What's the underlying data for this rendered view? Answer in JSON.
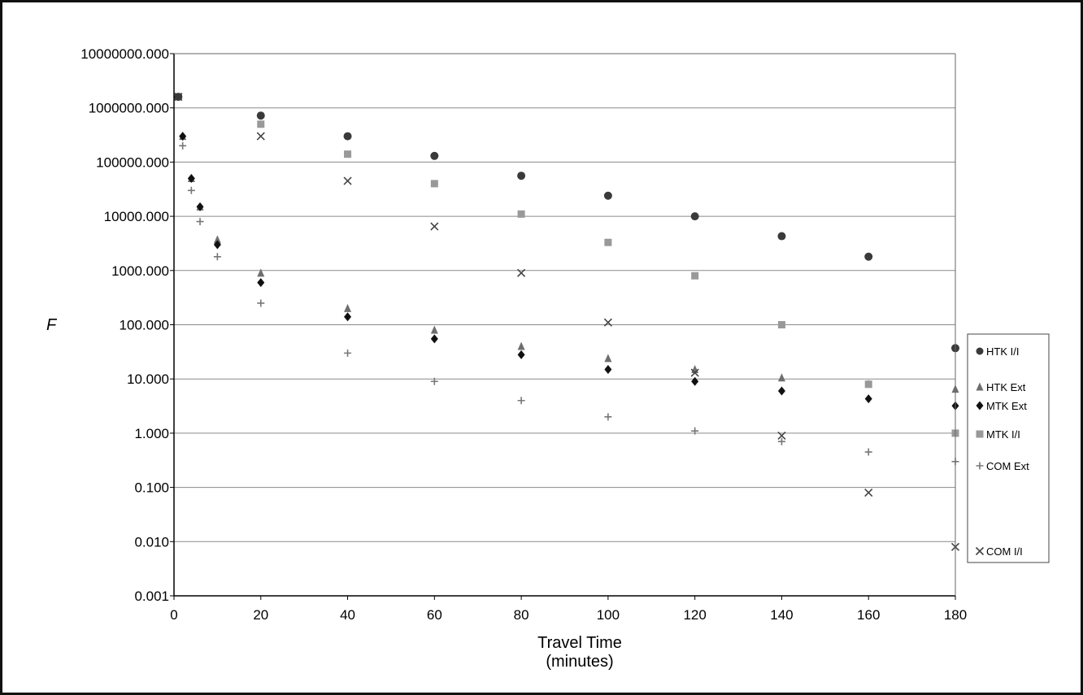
{
  "chart_data": {
    "type": "scatter",
    "title": "",
    "xlabel": "Travel Time",
    "xlabel_line2": "(minutes)",
    "ylabel": "F",
    "xlim": [
      0,
      180
    ],
    "ylim": [
      0.001,
      10000000
    ],
    "yscale": "log",
    "grid": "horizontal",
    "legend": "right",
    "x_ticks": [
      "0",
      "20",
      "40",
      "60",
      "80",
      "100",
      "120",
      "140",
      "160",
      "180"
    ],
    "y_ticks": [
      "0.001",
      "0.010",
      "0.100",
      "1.000",
      "10.000",
      "100.000",
      "1000.000",
      "10000.000",
      "100000.000",
      "1000000.000",
      "10000000.000"
    ],
    "series": [
      {
        "name": "HTK I/I",
        "marker": "circle",
        "color": "#3a3a3a",
        "x": [
          1,
          20,
          40,
          60,
          80,
          100,
          120,
          140,
          160,
          180
        ],
        "y": [
          1600000,
          720000,
          300000,
          130000,
          56000,
          24000,
          10000,
          4300,
          1800,
          37
        ]
      },
      {
        "name": "HTK Ext",
        "marker": "triangle",
        "color": "#6e6e6e",
        "x": [
          2,
          4,
          6,
          10,
          20,
          40,
          60,
          80,
          100,
          120,
          140,
          160,
          180
        ],
        "y": [
          300000,
          50000,
          15000,
          3700,
          900,
          200,
          80,
          40,
          24,
          15,
          10.5,
          8,
          6.5
        ]
      },
      {
        "name": "MTK Ext",
        "marker": "diamond",
        "color": "#111111",
        "x": [
          2,
          4,
          6,
          10,
          20,
          40,
          60,
          80,
          100,
          120,
          140,
          160,
          180
        ],
        "y": [
          300000,
          50000,
          15000,
          3000,
          600,
          140,
          55,
          28,
          15,
          9,
          6,
          4.3,
          3.2
        ]
      },
      {
        "name": "MTK I/I",
        "marker": "square",
        "color": "#999999",
        "x": [
          1,
          20,
          40,
          60,
          80,
          100,
          120,
          140,
          160,
          180
        ],
        "y": [
          1600000,
          500000,
          140000,
          40000,
          11000,
          3300,
          800,
          100,
          8,
          1
        ]
      },
      {
        "name": "COM Ext",
        "marker": "plus",
        "color": "#777777",
        "x": [
          2,
          4,
          6,
          10,
          20,
          40,
          60,
          80,
          100,
          120,
          140,
          160,
          180
        ],
        "y": [
          200000,
          30000,
          8000,
          1800,
          250,
          30,
          9,
          4,
          2,
          1.1,
          0.7,
          0.45,
          0.3
        ]
      },
      {
        "name": "COM I/I",
        "marker": "x",
        "color": "#444444",
        "x": [
          1,
          20,
          40,
          60,
          80,
          100,
          120,
          140,
          160,
          180
        ],
        "y": [
          1600000,
          300000,
          45000,
          6500,
          900,
          110,
          13,
          0.9,
          0.08,
          0.008
        ]
      }
    ]
  }
}
